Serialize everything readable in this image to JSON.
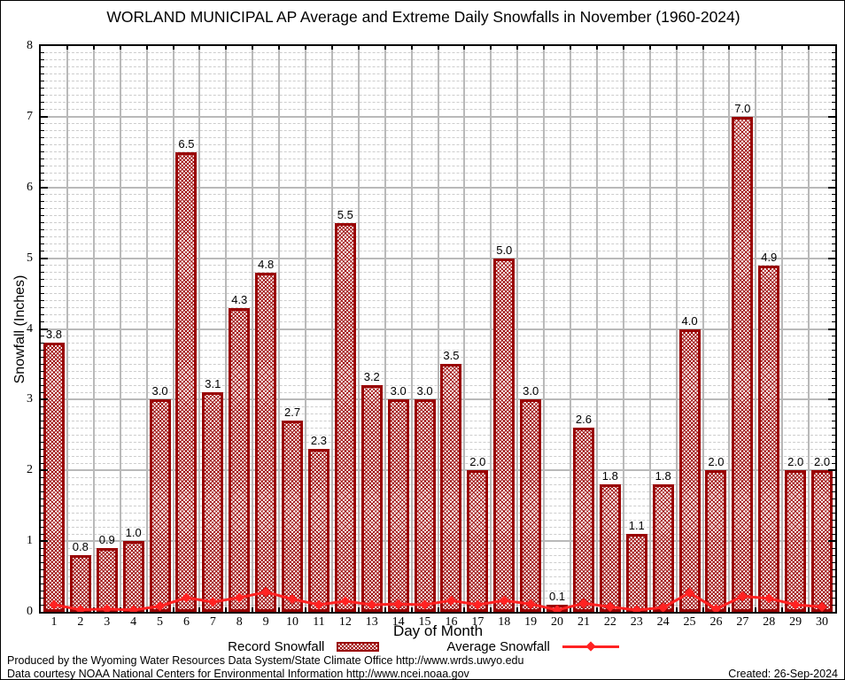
{
  "title": "WORLAND MUNICIPAL AP Average and Extreme Daily Snowfalls in November (1960-2024)",
  "chart_data": {
    "type": "bar",
    "title": "WORLAND MUNICIPAL AP Average and Extreme Daily Snowfalls in November (1960-2024)",
    "xlabel": "Day of Month",
    "ylabel": "Snowfall (Inches)",
    "ylim": [
      0,
      8
    ],
    "ytick_step": 1,
    "minor_grid_step": 0.1,
    "grid": true,
    "legend_position": "bottom",
    "categories": [
      1,
      2,
      3,
      4,
      5,
      6,
      7,
      8,
      9,
      10,
      11,
      12,
      13,
      14,
      15,
      16,
      17,
      18,
      19,
      20,
      21,
      22,
      23,
      24,
      25,
      26,
      27,
      28,
      29,
      30
    ],
    "series": [
      {
        "name": "Record Snowfall",
        "type": "bar",
        "color": "#990000",
        "values": [
          3.8,
          0.8,
          0.9,
          1.0,
          3.0,
          6.5,
          3.1,
          4.3,
          4.8,
          2.7,
          2.3,
          5.5,
          3.2,
          3.0,
          3.0,
          3.5,
          2.0,
          5.0,
          3.0,
          0.1,
          2.6,
          1.8,
          1.1,
          1.8,
          4.0,
          2.0,
          7.0,
          4.9,
          2.0,
          2.0
        ]
      },
      {
        "name": "Average Snowfall",
        "type": "line",
        "color": "#ff2222",
        "values": [
          0.1,
          0.03,
          0.04,
          0.0,
          0.08,
          0.2,
          0.14,
          0.2,
          0.28,
          0.18,
          0.1,
          0.15,
          0.1,
          0.11,
          0.1,
          0.16,
          0.1,
          0.16,
          0.11,
          0.0,
          0.12,
          0.07,
          0.02,
          0.06,
          0.27,
          0.04,
          0.22,
          0.19,
          0.1,
          0.07
        ]
      }
    ]
  },
  "legend": {
    "record": "Record Snowfall",
    "average": "Average Snowfall"
  },
  "footer": {
    "produced": "Produced by the Wyoming Water Resources Data System/State Climate Office http://www.wrds.uwyo.edu",
    "courtesy": "Data courtesy NOAA National Centers for Environmental Information http://www.ncei.noaa.gov",
    "created": "Created: 26-Sep-2024"
  }
}
